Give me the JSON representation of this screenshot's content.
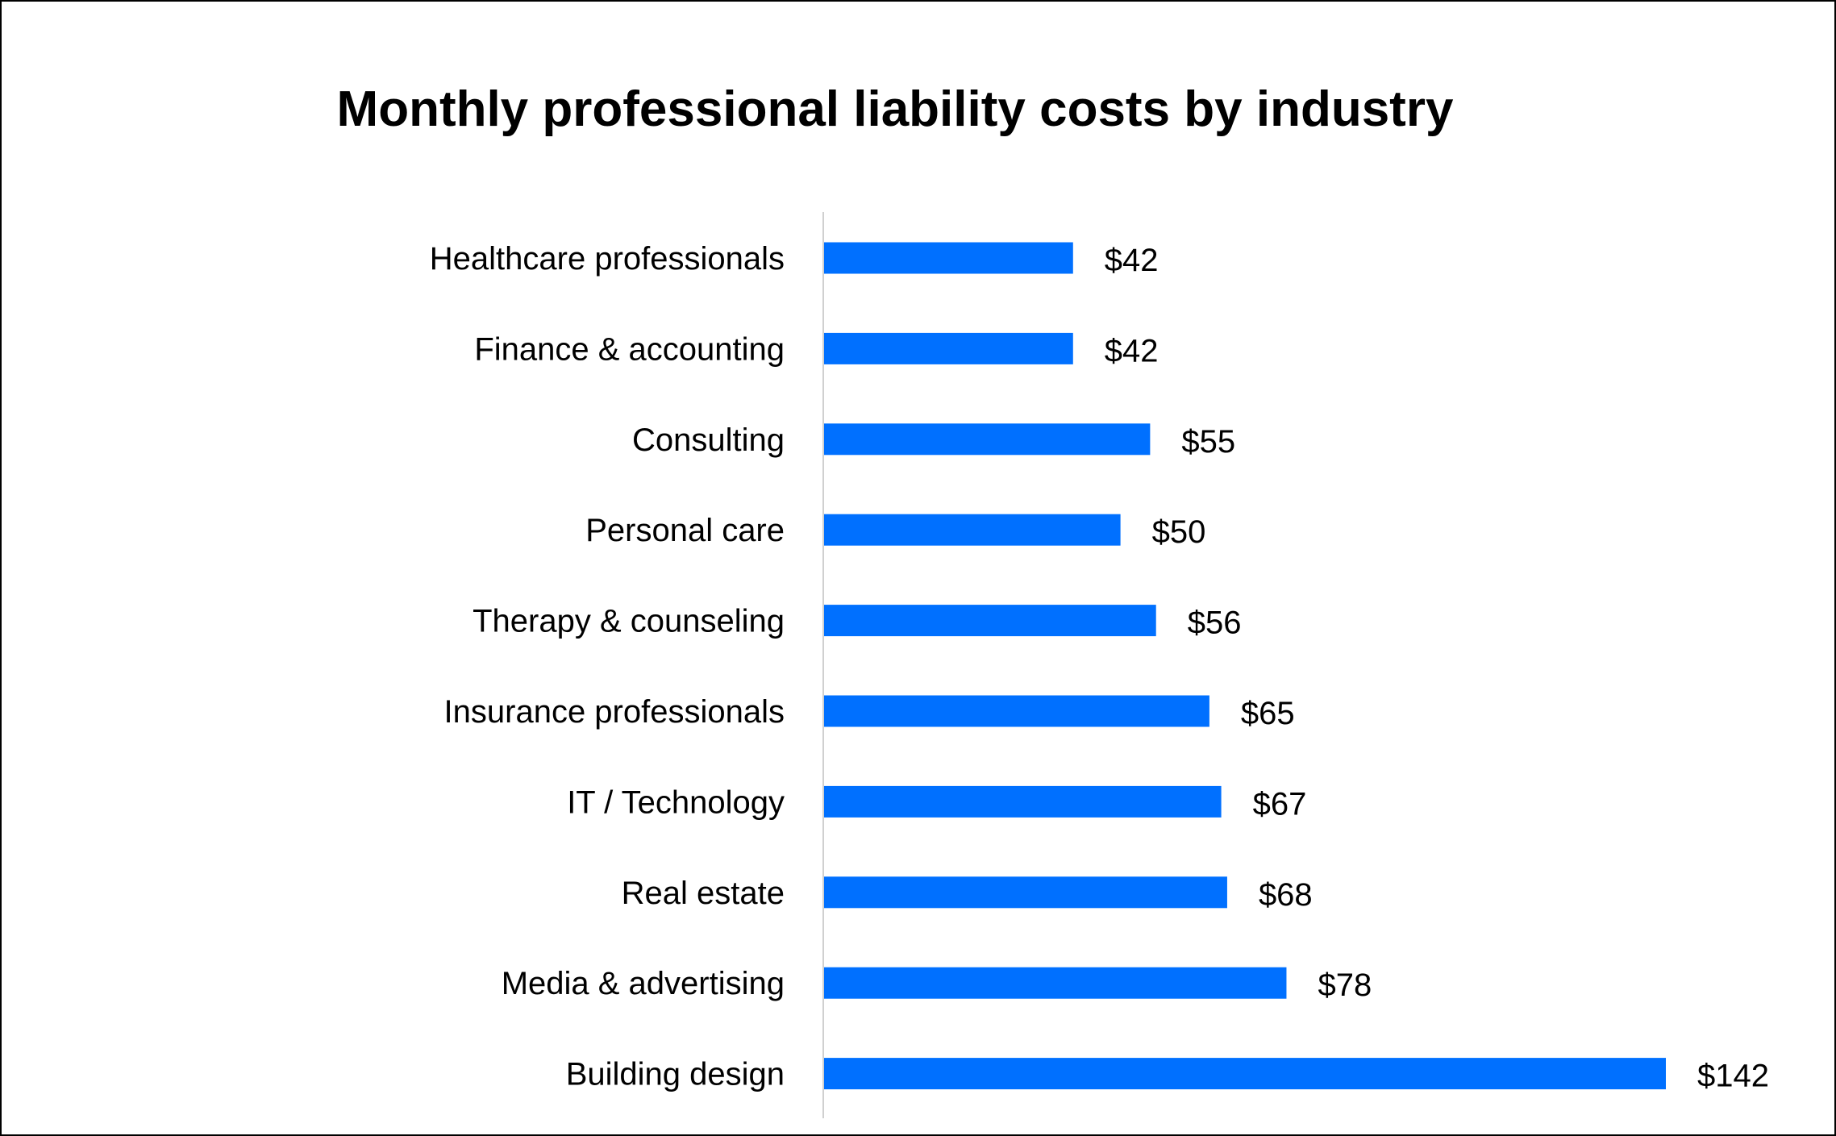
{
  "chart_data": {
    "type": "bar",
    "orientation": "horizontal",
    "title": "Monthly professional liability costs by industry",
    "xlabel": "",
    "ylabel": "",
    "categories": [
      "Healthcare professionals",
      "Finance & accounting",
      "Consulting",
      "Personal care",
      "Therapy & counseling",
      "Insurance professionals",
      "IT / Technology",
      "Real estate",
      "Media & advertising",
      "Building design"
    ],
    "values": [
      42,
      42,
      55,
      50,
      56,
      65,
      67,
      68,
      78,
      142
    ],
    "data_labels": [
      "$42",
      "$42",
      "$55",
      "$50",
      "$56",
      "$65",
      "$67",
      "$68",
      "$78",
      "$142"
    ],
    "xlim": [
      0,
      142
    ],
    "grid": false,
    "legend": "none",
    "bar_color": "#0070FF",
    "axis_color": "#D0D0D0"
  }
}
